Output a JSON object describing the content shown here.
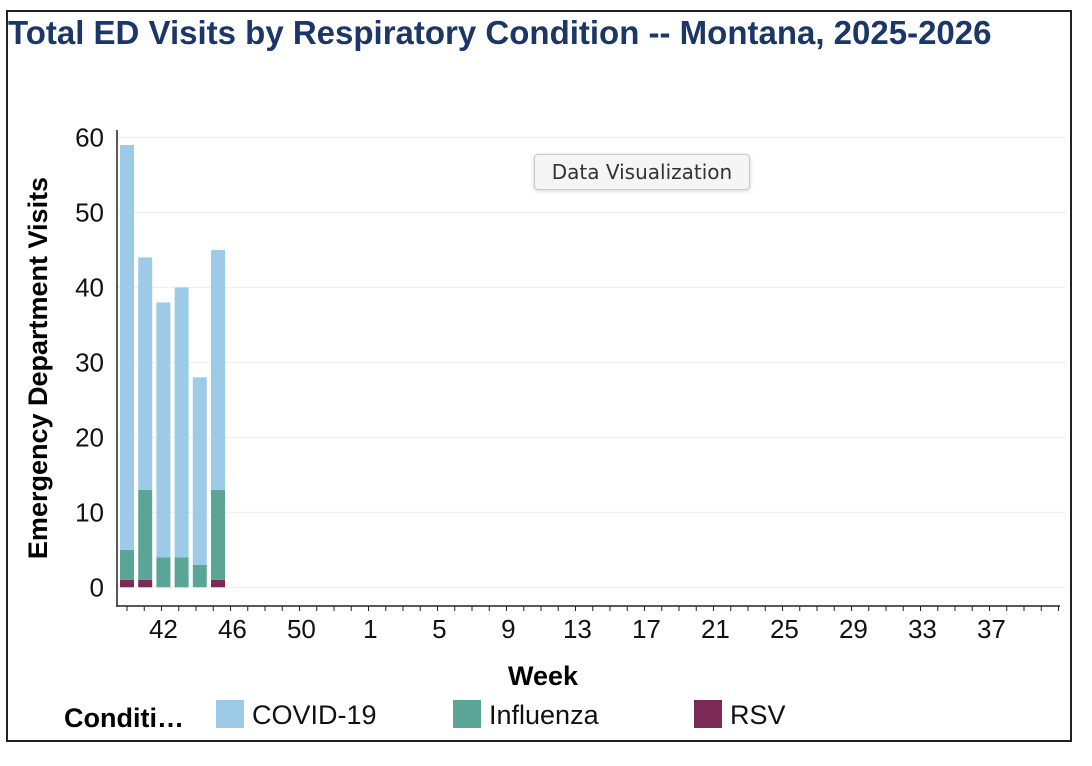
{
  "chart_data": {
    "type": "bar",
    "stacked": true,
    "title": "Total ED Visits by Respiratory Condition -- Montana, 2025-2026",
    "xlabel": "Week",
    "ylabel": "Emergency Department Visits",
    "ylim": [
      -2.5,
      61
    ],
    "yticks": [
      0,
      10,
      20,
      30,
      40,
      50,
      60
    ],
    "xtick_labels": [
      "42",
      "46",
      "50",
      "1",
      "5",
      "9",
      "13",
      "17",
      "21",
      "25",
      "29",
      "33",
      "37"
    ],
    "categories": [
      "40",
      "41",
      "42",
      "43",
      "44",
      "45"
    ],
    "series": [
      {
        "name": "RSV",
        "color": "#7b2a55",
        "values": [
          1,
          1,
          0,
          0,
          0,
          1
        ]
      },
      {
        "name": "Influenza",
        "color": "#5aa595",
        "values": [
          4,
          12,
          4,
          4,
          3,
          12
        ]
      },
      {
        "name": "COVID-19",
        "color": "#9dcbe7",
        "values": [
          54,
          31,
          34,
          36,
          25,
          32
        ]
      }
    ],
    "grid": "horizontal",
    "legend": {
      "title": "Conditi…",
      "position": "bottom",
      "order": [
        "COVID-19",
        "Influenza",
        "RSV"
      ]
    }
  },
  "tooltip": {
    "text": "Data Visualization"
  }
}
